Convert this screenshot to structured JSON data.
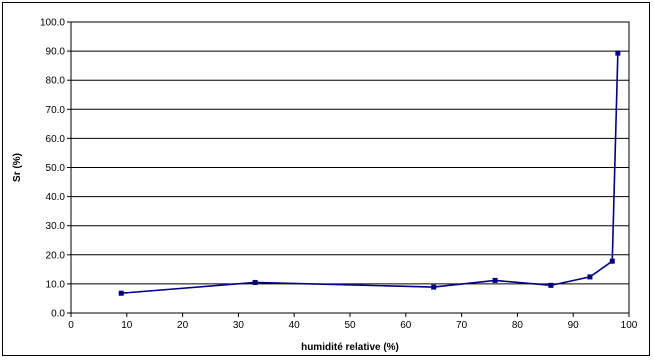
{
  "chart_data": {
    "type": "line",
    "title": "",
    "xlabel": "humidité relative (%)",
    "ylabel": "Sr (%)",
    "xlim": [
      0,
      100
    ],
    "ylim": [
      0,
      100
    ],
    "x_ticks": [
      "0",
      "10",
      "20",
      "30",
      "40",
      "50",
      "60",
      "70",
      "80",
      "90",
      "100"
    ],
    "y_ticks": [
      "0.0",
      "10.0",
      "20.0",
      "30.0",
      "40.0",
      "50.0",
      "60.0",
      "70.0",
      "80.0",
      "90.0",
      "100.0"
    ],
    "grid": "horizontal",
    "legend": "none",
    "series": [
      {
        "color": "#000080",
        "marker": "square",
        "x": [
          9,
          33,
          65,
          76,
          86,
          93,
          97,
          98
        ],
        "y": [
          6.8,
          10.5,
          8.9,
          11.2,
          9.5,
          12.4,
          17.8,
          89.3
        ]
      }
    ]
  }
}
